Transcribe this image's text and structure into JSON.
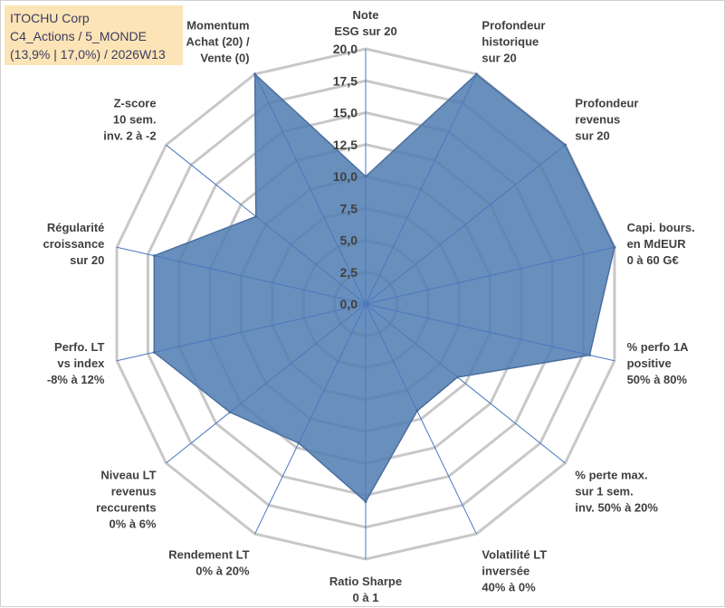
{
  "header": {
    "line1": "ITOCHU Corp",
    "line2": "C4_Actions / 5_MONDE",
    "line3": "(13,9% | 17,0%) / 2026W13"
  },
  "chart_data": {
    "type": "radar",
    "title": "ITOCHU Corp",
    "rmin": 0,
    "rmax": 20,
    "ticks": [
      "0,0",
      "2,5",
      "5,0",
      "7,5",
      "10,0",
      "12,5",
      "15,0",
      "17,5",
      "20,0"
    ],
    "axes": [
      {
        "label": [
          "Note",
          "ESG sur 20"
        ],
        "value": 10.0
      },
      {
        "label": [
          "Profondeur",
          "historique",
          "sur 20"
        ],
        "value": 20.0
      },
      {
        "label": [
          "Profondeur",
          "revenus",
          "sur 20"
        ],
        "value": 20.0
      },
      {
        "label": [
          "Capi. bours.",
          "en MdEUR",
          "0 à 60 G€"
        ],
        "value": 20.0
      },
      {
        "label": [
          "% perfo 1A",
          "positive",
          "50% à 80%"
        ],
        "value": 18.0
      },
      {
        "label": [
          "% perte max.",
          "sur 1 sem.",
          "inv. 50% à 20%"
        ],
        "value": 9.2
      },
      {
        "label": [
          "Volatilité LT",
          "inversée",
          "40% à 0%"
        ],
        "value": 9.3
      },
      {
        "label": [
          "Ratio Sharpe",
          "0 à 1"
        ],
        "value": 15.5
      },
      {
        "label": [
          "Rendement LT",
          "0% à 20%"
        ],
        "value": 12.1
      },
      {
        "label": [
          "Niveau LT",
          "revenus",
          "reccurents",
          "0% à 6%"
        ],
        "value": 13.6
      },
      {
        "label": [
          "Perfo. LT",
          "vs index",
          "-8% à 12%"
        ],
        "value": 17.0
      },
      {
        "label": [
          "Régularité",
          "croissance",
          "sur 20"
        ],
        "value": 17.0
      },
      {
        "label": [
          "Z-score",
          "10 sem.",
          "inv. 2 à -2"
        ],
        "value": 11.0
      },
      {
        "label": [
          "Momentum",
          "Achat (20) /",
          "Vente (0)"
        ],
        "value": 20.0
      }
    ],
    "series": [
      {
        "name": "ITOCHU Corp",
        "color": "#4f7bb0"
      }
    ],
    "grid_color": "#c8c8c8",
    "spoke_color": "#4a78c0"
  }
}
